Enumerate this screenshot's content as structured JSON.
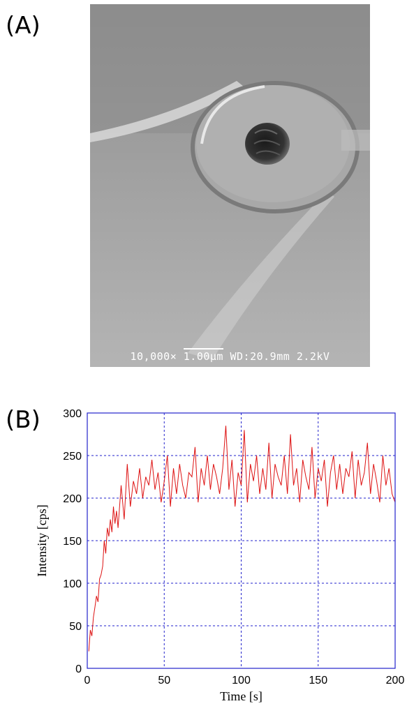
{
  "panels": {
    "a_label": "(A)",
    "b_label": "(B)"
  },
  "sem_image": {
    "magnification": "10,000×",
    "scale_bar": "1.00μm",
    "working_distance": "WD:20.9mm",
    "voltage": "2.2kV"
  },
  "chart_data": {
    "type": "line",
    "title": "",
    "xlabel": "Time [s]",
    "ylabel": "Intensity [cps]",
    "xlim": [
      0,
      200
    ],
    "ylim": [
      0,
      300
    ],
    "xticks": [
      0,
      50,
      100,
      150,
      200
    ],
    "yticks": [
      0,
      50,
      100,
      150,
      200,
      250,
      300
    ],
    "grid": true,
    "series_color": "#dd1111",
    "grid_color": "#2222cc",
    "series": [
      {
        "x": [
          1,
          2,
          3,
          4,
          5,
          6,
          7,
          8,
          9,
          10,
          11,
          12,
          13,
          14,
          15,
          16,
          17,
          18,
          19,
          20,
          22,
          24,
          26,
          28,
          30,
          32,
          34,
          36,
          38,
          40,
          42,
          44,
          46,
          48,
          50,
          52,
          54,
          56,
          58,
          60,
          62,
          64,
          66,
          68,
          70,
          72,
          74,
          76,
          78,
          80,
          82,
          84,
          86,
          88,
          90,
          92,
          94,
          96,
          98,
          100,
          102,
          104,
          106,
          108,
          110,
          112,
          114,
          116,
          118,
          120,
          122,
          124,
          126,
          128,
          130,
          132,
          134,
          136,
          138,
          140,
          142,
          144,
          146,
          148,
          150,
          152,
          154,
          156,
          158,
          160,
          162,
          164,
          166,
          168,
          170,
          172,
          174,
          176,
          178,
          180,
          182,
          184,
          186,
          188,
          190,
          192,
          194,
          196,
          198,
          200
        ],
        "y": [
          20,
          45,
          38,
          60,
          72,
          85,
          78,
          105,
          110,
          120,
          150,
          135,
          165,
          155,
          175,
          160,
          190,
          170,
          185,
          165,
          215,
          175,
          240,
          190,
          220,
          205,
          235,
          200,
          225,
          215,
          245,
          210,
          230,
          195,
          220,
          250,
          190,
          235,
          205,
          240,
          215,
          200,
          230,
          225,
          260,
          195,
          235,
          215,
          250,
          210,
          240,
          225,
          205,
          235,
          285,
          210,
          245,
          190,
          230,
          215,
          280,
          195,
          240,
          220,
          250,
          205,
          235,
          210,
          265,
          200,
          240,
          225,
          215,
          250,
          205,
          275,
          215,
          235,
          195,
          245,
          225,
          210,
          260,
          200,
          235,
          220,
          245,
          190,
          230,
          250,
          210,
          240,
          205,
          235,
          225,
          255,
          200,
          245,
          215,
          230,
          265,
          205,
          240,
          220,
          195,
          250,
          215,
          235,
          205,
          195
        ]
      }
    ]
  }
}
